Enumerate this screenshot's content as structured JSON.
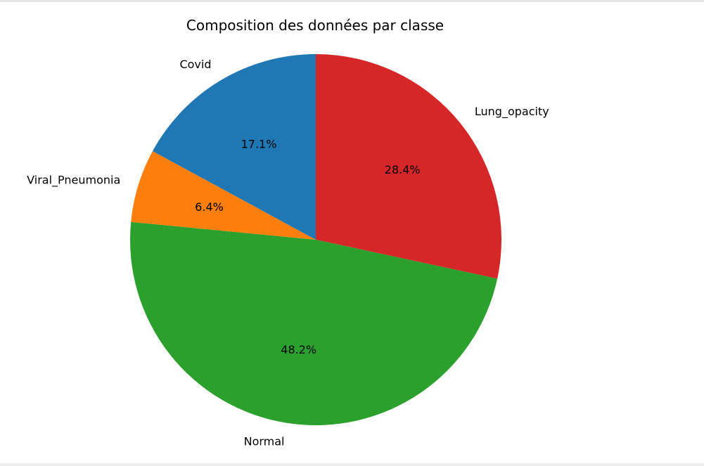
{
  "chart_data": {
    "type": "pie",
    "title": "Composition des données par classe",
    "start_angle_deg": 90,
    "direction": "clockwise",
    "slices": [
      {
        "label": "Lung_opacity",
        "value": 28.4,
        "pct_label": "28.4%",
        "color": "#d62728"
      },
      {
        "label": "Normal",
        "value": 48.2,
        "pct_label": "48.2%",
        "color": "#2ca02c"
      },
      {
        "label": "Viral_Pneumonia",
        "value": 6.4,
        "pct_label": "6.4%",
        "color": "#ff7f0e"
      },
      {
        "label": "Covid",
        "value": 17.1,
        "pct_label": "17.1%",
        "color": "#1f77b4"
      }
    ],
    "legend": "none",
    "grid": false
  }
}
